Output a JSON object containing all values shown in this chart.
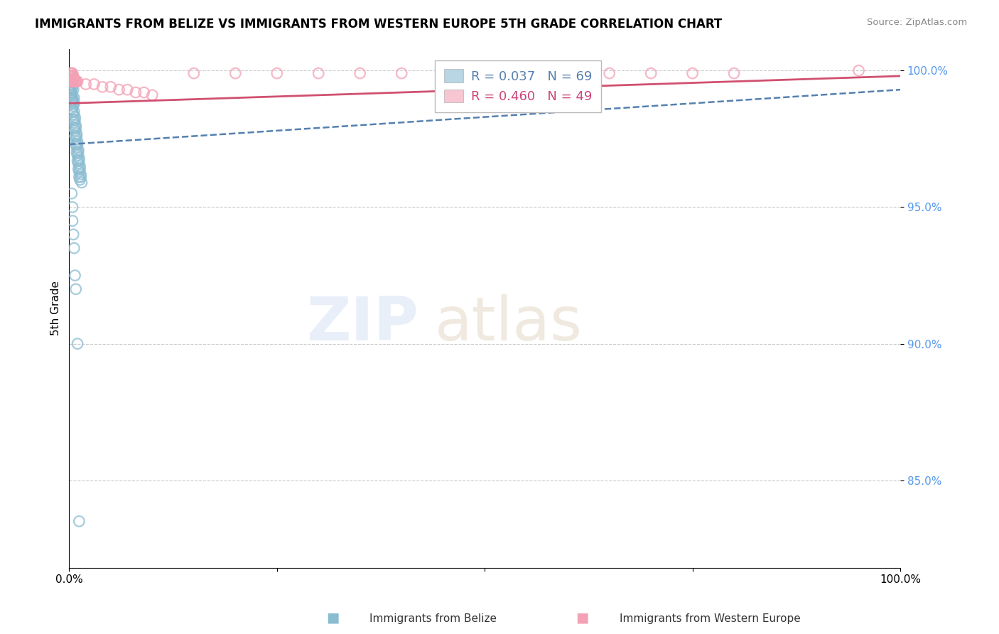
{
  "title": "IMMIGRANTS FROM BELIZE VS IMMIGRANTS FROM WESTERN EUROPE 5TH GRADE CORRELATION CHART",
  "source_text": "Source: ZipAtlas.com",
  "ylabel": "5th Grade",
  "xlim": [
    0.0,
    1.0
  ],
  "ylim": [
    0.818,
    1.008
  ],
  "yticks": [
    0.85,
    0.9,
    0.95,
    1.0
  ],
  "ytick_labels": [
    "85.0%",
    "90.0%",
    "95.0%",
    "100.0%"
  ],
  "xticks": [
    0.0,
    0.25,
    0.5,
    0.75,
    1.0
  ],
  "xtick_labels": [
    "0.0%",
    "",
    "",
    "",
    "100.0%"
  ],
  "blue_color": "#8abcd1",
  "pink_color": "#f4a0b5",
  "blue_line_color": "#5580b0",
  "pink_line_color": "#d05070",
  "background_color": "#ffffff",
  "watermark_left": "ZIP",
  "watermark_right": "atlas",
  "grid_color": "#cccccc",
  "R_blue": "R = 0.037",
  "N_blue": "N = 69",
  "R_pink": "R = 0.460",
  "N_pink": "N = 49",
  "legend_label_blue": "Immigrants from Belize",
  "legend_label_pink": "Immigrants from Western Europe",
  "blue_trend": [
    0.0,
    1.0,
    0.973,
    0.993
  ],
  "pink_trend_start_x": 0.0,
  "pink_trend_end_x": 1.0,
  "pink_trend_start_y": 0.988,
  "pink_trend_end_y": 0.998,
  "blue_scatter_x": [
    0.002,
    0.003,
    0.004,
    0.002,
    0.003,
    0.005,
    0.003,
    0.004,
    0.005,
    0.006,
    0.004,
    0.005,
    0.006,
    0.003,
    0.004,
    0.005,
    0.006,
    0.007,
    0.005,
    0.006,
    0.007,
    0.008,
    0.006,
    0.007,
    0.008,
    0.009,
    0.007,
    0.008,
    0.009,
    0.01,
    0.008,
    0.009,
    0.01,
    0.011,
    0.009,
    0.01,
    0.011,
    0.012,
    0.01,
    0.011,
    0.012,
    0.013,
    0.011,
    0.012,
    0.013,
    0.014,
    0.012,
    0.013,
    0.014,
    0.015,
    0.001,
    0.001,
    0.001,
    0.001,
    0.001,
    0.002,
    0.002,
    0.002,
    0.003,
    0.003,
    0.003,
    0.004,
    0.004,
    0.005,
    0.006,
    0.007,
    0.008,
    0.01,
    0.012
  ],
  "blue_scatter_y": [
    0.996,
    0.995,
    0.994,
    0.993,
    0.992,
    0.993,
    0.991,
    0.99,
    0.989,
    0.99,
    0.988,
    0.987,
    0.988,
    0.986,
    0.985,
    0.984,
    0.985,
    0.983,
    0.982,
    0.981,
    0.982,
    0.98,
    0.979,
    0.978,
    0.979,
    0.977,
    0.976,
    0.975,
    0.976,
    0.974,
    0.973,
    0.972,
    0.973,
    0.971,
    0.97,
    0.969,
    0.97,
    0.968,
    0.967,
    0.966,
    0.967,
    0.965,
    0.964,
    0.963,
    0.964,
    0.962,
    0.961,
    0.96,
    0.961,
    0.959,
    0.998,
    0.997,
    0.996,
    0.995,
    0.994,
    0.993,
    0.992,
    0.991,
    0.99,
    0.989,
    0.955,
    0.95,
    0.945,
    0.94,
    0.935,
    0.925,
    0.92,
    0.9,
    0.835
  ],
  "pink_scatter_x": [
    0.001,
    0.002,
    0.003,
    0.004,
    0.001,
    0.002,
    0.003,
    0.004,
    0.005,
    0.001,
    0.002,
    0.003,
    0.004,
    0.005,
    0.006,
    0.001,
    0.002,
    0.003,
    0.004,
    0.005,
    0.006,
    0.007,
    0.008,
    0.009,
    0.01,
    0.02,
    0.03,
    0.04,
    0.05,
    0.06,
    0.07,
    0.08,
    0.09,
    0.1,
    0.15,
    0.2,
    0.25,
    0.3,
    0.35,
    0.4,
    0.45,
    0.5,
    0.55,
    0.6,
    0.65,
    0.7,
    0.75,
    0.8,
    0.95
  ],
  "pink_scatter_y": [
    0.999,
    0.999,
    0.999,
    0.999,
    0.998,
    0.998,
    0.998,
    0.998,
    0.998,
    0.997,
    0.997,
    0.997,
    0.997,
    0.997,
    0.997,
    0.996,
    0.996,
    0.996,
    0.996,
    0.996,
    0.996,
    0.996,
    0.996,
    0.996,
    0.996,
    0.995,
    0.995,
    0.994,
    0.994,
    0.993,
    0.993,
    0.992,
    0.992,
    0.991,
    0.999,
    0.999,
    0.999,
    0.999,
    0.999,
    0.999,
    0.999,
    0.999,
    0.999,
    0.999,
    0.999,
    0.999,
    0.999,
    0.999,
    1.0
  ]
}
